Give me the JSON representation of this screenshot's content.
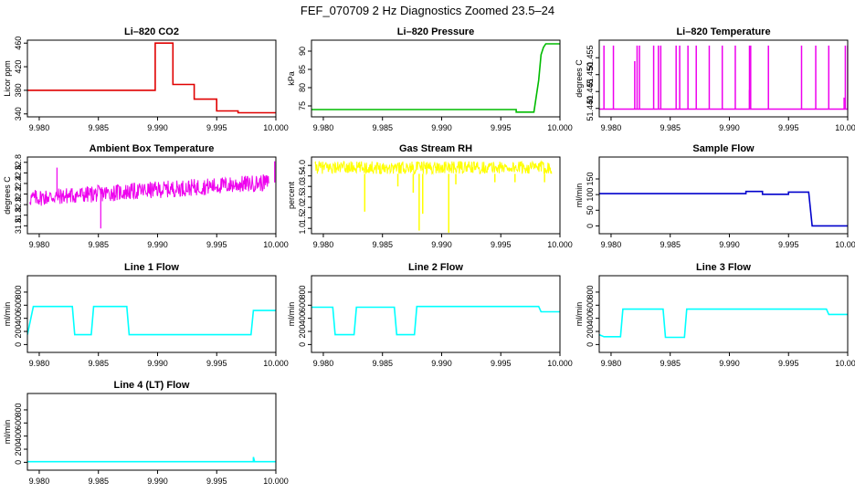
{
  "figure_title": "FEF_070709  2 Hz Diagnostics Zoomed 23.5–24",
  "chart_data": [
    {
      "type": "line",
      "title": "Li–820 CO2",
      "xlabel": "",
      "ylabel": "Licor ppm",
      "color": "#e00000",
      "xlim": [
        9.979,
        10.0
      ],
      "ylim": [
        335,
        465
      ],
      "xticks": [
        "9.980",
        "9.985",
        "9.990",
        "9.995",
        "10.000"
      ],
      "yticks": [
        "340",
        "380",
        "420",
        "460"
      ],
      "series": [
        {
          "name": "CO2",
          "x": [
            9.979,
            9.9898,
            9.9898,
            9.9913,
            9.9913,
            9.9931,
            9.9931,
            9.995,
            9.995,
            9.9968,
            9.9968,
            10.0
          ],
          "y": [
            380,
            380,
            460,
            460,
            390,
            390,
            365,
            365,
            345,
            345,
            342,
            342
          ]
        }
      ]
    },
    {
      "type": "line",
      "title": "Li–820 Pressure",
      "xlabel": "",
      "ylabel": "kPa",
      "color": "#00bb00",
      "xlim": [
        9.979,
        10.0
      ],
      "ylim": [
        72,
        93
      ],
      "xticks": [
        "9.980",
        "9.985",
        "9.990",
        "9.995",
        "10.000"
      ],
      "yticks": [
        "75",
        "80",
        "85",
        "90"
      ],
      "series": [
        {
          "name": "Pressure",
          "x": [
            9.979,
            9.9963,
            9.9963,
            9.9978,
            9.9982,
            9.9984,
            9.9986,
            9.9988,
            10.0
          ],
          "y": [
            74,
            74,
            73.3,
            73.3,
            82,
            89,
            91,
            92,
            92
          ]
        }
      ]
    },
    {
      "type": "line",
      "title": "Li–820 Temperature",
      "xlabel": "",
      "ylabel": "degrees C",
      "color": "#ee00ee",
      "xlim": [
        9.979,
        10.0
      ],
      "ylim": [
        51.4375,
        51.4602
      ],
      "xticks": [
        "9.980",
        "9.985",
        "9.990",
        "9.995",
        "10.000"
      ],
      "yticks": [
        "51.440",
        "51.445",
        "51.450",
        "51.455"
      ],
      "baseline": 51.4398,
      "spike_top": 51.4586,
      "spikes": [
        9.9794,
        9.9802,
        9.9822,
        9.9824,
        9.9836,
        9.984,
        9.9842,
        9.9855,
        9.9858,
        9.9865,
        9.9872,
        9.9883,
        9.9894,
        9.9905,
        9.9917,
        9.9918,
        9.9933,
        9.9961,
        9.9973,
        9.9984,
        9.9998,
        10.0
      ],
      "short_spikes": [
        {
          "x": 9.982,
          "y": 51.454
        },
        {
          "x": 9.9917,
          "y": 51.4455
        },
        {
          "x": 9.9997,
          "y": 51.4432
        }
      ]
    },
    {
      "type": "line",
      "title": "Ambient Box Temperature",
      "xlabel": "",
      "ylabel": "degrees C",
      "color": "#ee00ee",
      "xlim": [
        9.979,
        10.0
      ],
      "ylim": [
        31.45,
        32.9
      ],
      "xticks": [
        "9.980",
        "9.985",
        "9.990",
        "9.995",
        "10.000"
      ],
      "yticks": [
        "31.6",
        "31.8",
        "32.0",
        "32.2",
        "32.4",
        "32.6",
        "32.8"
      ],
      "trend": {
        "start": 32.12,
        "end": 32.42,
        "half_width": 0.16
      },
      "outliers": [
        {
          "x": 9.9852,
          "y": 31.55
        },
        {
          "x": 9.9815,
          "y": 32.7
        },
        {
          "x": 9.9999,
          "y": 32.82
        }
      ]
    },
    {
      "type": "line",
      "title": "Gas Stream RH",
      "xlabel": "",
      "ylabel": "percent",
      "color": "#ffff00",
      "xlim": [
        9.979,
        10.0
      ],
      "ylim": [
        0.75,
        4.4
      ],
      "xticks": [
        "9.980",
        "9.985",
        "9.990",
        "9.995",
        "10.000"
      ],
      "yticks": [
        "1.0",
        "1.5",
        "2.0",
        "2.5",
        "3.0",
        "3.5",
        "4.0"
      ],
      "band": [
        3.6,
        4.2
      ],
      "dips": [
        {
          "x": 9.9835,
          "y": 1.8
        },
        {
          "x": 9.9863,
          "y": 3.0
        },
        {
          "x": 9.9876,
          "y": 2.7
        },
        {
          "x": 9.9881,
          "y": 0.9
        },
        {
          "x": 9.9884,
          "y": 1.7
        },
        {
          "x": 9.9906,
          "y": 0.8
        },
        {
          "x": 9.9912,
          "y": 3.1
        },
        {
          "x": 9.9945,
          "y": 3.2
        },
        {
          "x": 9.9962,
          "y": 3.2
        },
        {
          "x": 9.9987,
          "y": 3.2
        }
      ]
    },
    {
      "type": "line",
      "title": "Sample Flow",
      "xlabel": "",
      "ylabel": "ml/min",
      "color": "#0000cc",
      "xlim": [
        9.979,
        10.0
      ],
      "ylim": [
        -25,
        220
      ],
      "xticks": [
        "9.980",
        "9.985",
        "9.990",
        "9.995",
        "10.000"
      ],
      "yticks": [
        "0",
        "50",
        "100",
        "150"
      ],
      "series": [
        {
          "name": "Sample Flow",
          "x": [
            9.979,
            9.9914,
            9.9914,
            9.9928,
            9.9928,
            9.995,
            9.995,
            9.9967,
            9.997,
            10.0
          ],
          "y": [
            103,
            103,
            110,
            110,
            101,
            101,
            108,
            108,
            0,
            0
          ]
        }
      ]
    },
    {
      "type": "line",
      "title": "Line 1 Flow",
      "xlabel": "",
      "ylabel": "ml/min",
      "color": "#00ffff",
      "xlim": [
        9.979,
        10.0
      ],
      "ylim": [
        -120,
        1050
      ],
      "xticks": [
        "9.980",
        "9.985",
        "9.990",
        "9.995",
        "10.000"
      ],
      "yticks": [
        "0",
        "200",
        "400",
        "600",
        "800"
      ],
      "series": [
        {
          "name": "Line 1",
          "x": [
            9.979,
            9.9795,
            9.9828,
            9.983,
            9.9844,
            9.9846,
            9.9874,
            9.9876,
            9.9979,
            9.9981,
            10.0
          ],
          "y": [
            150,
            580,
            580,
            150,
            150,
            580,
            580,
            150,
            150,
            520,
            520
          ]
        }
      ]
    },
    {
      "type": "line",
      "title": "Line 2 Flow",
      "xlabel": "",
      "ylabel": "ml/min",
      "color": "#00ffff",
      "xlim": [
        9.979,
        10.0
      ],
      "ylim": [
        -120,
        1050
      ],
      "xticks": [
        "9.980",
        "9.985",
        "9.990",
        "9.995",
        "10.000"
      ],
      "yticks": [
        "0",
        "200",
        "400",
        "600",
        "800"
      ],
      "series": [
        {
          "name": "Line 2",
          "x": [
            9.979,
            9.9808,
            9.981,
            9.9826,
            9.9828,
            9.986,
            9.9862,
            9.9877,
            9.9879,
            9.9982,
            9.9984,
            10.0
          ],
          "y": [
            570,
            570,
            150,
            150,
            570,
            570,
            150,
            150,
            580,
            580,
            500,
            500
          ]
        }
      ]
    },
    {
      "type": "line",
      "title": "Line 3 Flow",
      "xlabel": "",
      "ylabel": "ml/min",
      "color": "#00ffff",
      "xlim": [
        9.979,
        10.0
      ],
      "ylim": [
        -120,
        1050
      ],
      "xticks": [
        "9.980",
        "9.985",
        "9.990",
        "9.995",
        "10.000"
      ],
      "yticks": [
        "0",
        "200",
        "400",
        "600",
        "800"
      ],
      "series": [
        {
          "name": "Line 3",
          "x": [
            9.979,
            9.9794,
            9.9808,
            9.981,
            9.9844,
            9.9846,
            9.9862,
            9.9864,
            9.9982,
            9.9984,
            10.0
          ],
          "y": [
            150,
            120,
            120,
            540,
            540,
            110,
            110,
            540,
            540,
            460,
            460
          ]
        }
      ]
    },
    {
      "type": "line",
      "title": "Line 4 (LT) Flow",
      "xlabel": "",
      "ylabel": "ml/min",
      "color": "#00ffff",
      "xlim": [
        9.979,
        10.0
      ],
      "ylim": [
        -120,
        1050
      ],
      "xticks": [
        "9.980",
        "9.985",
        "9.990",
        "9.995",
        "10.000"
      ],
      "yticks": [
        "0",
        "200",
        "400",
        "600",
        "800"
      ],
      "series": [
        {
          "name": "Line 4",
          "x": [
            9.979,
            9.9981,
            9.9981,
            9.9982,
            9.9983,
            10.0
          ],
          "y": [
            10,
            10,
            80,
            10,
            10,
            10
          ]
        }
      ]
    }
  ]
}
